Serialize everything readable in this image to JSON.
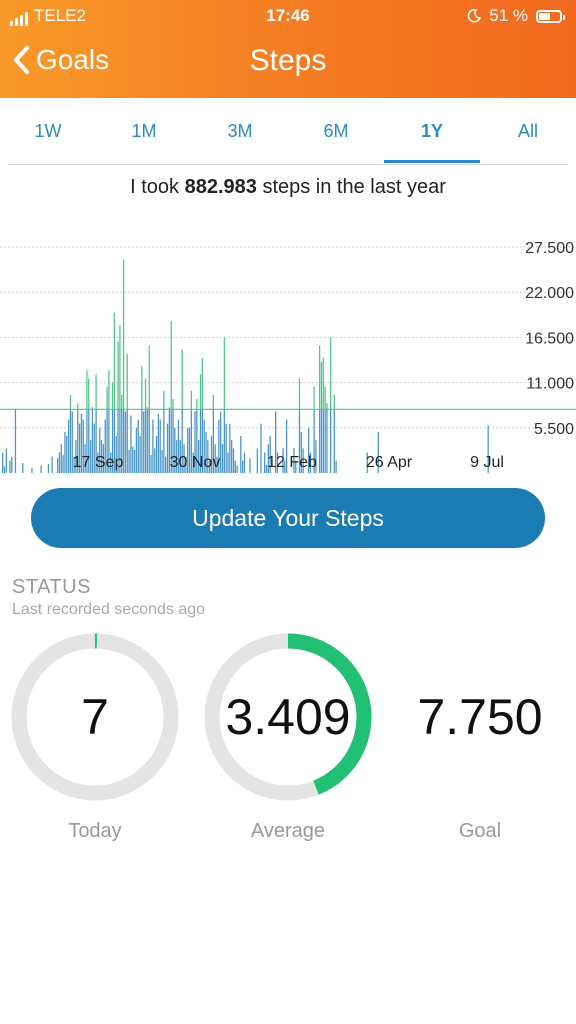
{
  "status_bar": {
    "carrier": "TELE2",
    "time": "17:46",
    "battery": "51 %"
  },
  "nav": {
    "back_label": "Goals",
    "title": "Steps"
  },
  "tabs": [
    {
      "label": "1W",
      "active": false
    },
    {
      "label": "1M",
      "active": false
    },
    {
      "label": "3M",
      "active": false
    },
    {
      "label": "6M",
      "active": false
    },
    {
      "label": "1Y",
      "active": true
    },
    {
      "label": "All",
      "active": false
    }
  ],
  "summary": {
    "prefix": "I took ",
    "steps": "882.983",
    "suffix": " steps in the last year"
  },
  "chart_data": {
    "type": "bar",
    "y_ticks": [
      "27.500",
      "22.000",
      "16.500",
      "11.000",
      "5.500"
    ],
    "y_tick_values": [
      27500,
      22000,
      16500,
      11000,
      5500
    ],
    "ylim": [
      0,
      27500
    ],
    "x_tick_labels": [
      "17 Sep",
      "30 Nov",
      "12 Feb",
      "26 Apr",
      "9 Jul"
    ],
    "goal_line": 7750,
    "colors": {
      "above_goal": "#52c58a",
      "below_goal": "#4a96c8",
      "goal_line": "#52c58a"
    },
    "values": [
      2500,
      800,
      3000,
      0,
      1500,
      2000,
      0,
      7800,
      0,
      0,
      0,
      1200,
      0,
      0,
      0,
      0,
      600,
      0,
      0,
      0,
      0,
      900,
      0,
      0,
      0,
      1100,
      0,
      2000,
      0,
      0,
      1800,
      2500,
      3500,
      2200,
      5000,
      4500,
      6500,
      9500,
      7500,
      2000,
      4000,
      8500,
      6000,
      7200,
      6500,
      3500,
      12500,
      11500,
      4000,
      8000,
      6000,
      12000,
      2500,
      5500,
      4000,
      3500,
      6500,
      10500,
      12500,
      2500,
      11000,
      19500,
      4500,
      16000,
      18000,
      9500,
      26000,
      7500,
      14500,
      2800,
      7000,
      3200,
      2800,
      5500,
      6500,
      4500,
      13000,
      7500,
      11500,
      8000,
      15500,
      2200,
      6500,
      3000,
      4500,
      7200,
      6500,
      2800,
      10000,
      2000,
      6000,
      8000,
      18500,
      9000,
      5500,
      4000,
      6500,
      4000,
      15000,
      3500,
      2000,
      5500,
      5500,
      10000,
      2500,
      7500,
      9000,
      4000,
      12000,
      14000,
      6500,
      5000,
      4000,
      1500,
      4500,
      9500,
      3500,
      2000,
      6500,
      7500,
      3500,
      16500,
      6000,
      2500,
      6000,
      4000,
      3000,
      1500,
      900,
      0,
      4500,
      1500,
      2500,
      0,
      0,
      1800,
      0,
      0,
      0,
      3000,
      0,
      6000,
      0,
      2500,
      1000,
      3500,
      4500,
      0,
      0,
      7500,
      2500,
      0,
      0,
      3000,
      1500,
      6500,
      0,
      0,
      0,
      3000,
      1500,
      0,
      11500,
      5000,
      3000,
      0,
      0,
      5500,
      2500,
      0,
      10500,
      4000,
      0,
      15500,
      13500,
      14000,
      10500,
      8500,
      0,
      16500,
      0,
      9500,
      1500,
      0,
      0,
      0,
      0,
      0,
      0,
      0,
      0,
      0,
      0,
      0,
      0,
      0,
      0,
      0,
      0,
      2500,
      0,
      0,
      0,
      0,
      0,
      5000,
      0,
      0,
      0,
      0,
      0,
      0,
      0,
      0,
      0,
      0,
      0,
      0,
      0,
      0,
      0,
      0,
      0,
      0,
      0,
      0,
      0,
      0,
      0,
      0,
      0,
      0,
      0,
      0,
      0,
      0,
      0,
      0,
      0,
      0,
      0,
      0,
      0,
      0,
      0,
      0,
      0,
      0,
      0,
      0,
      0,
      0,
      0,
      0,
      0,
      0,
      0,
      0,
      0,
      0,
      0,
      0,
      0,
      0,
      0,
      5800,
      0,
      0,
      0,
      0,
      0,
      0,
      0,
      0,
      0,
      0,
      0,
      0,
      0,
      0,
      0,
      0,
      0,
      0,
      0,
      0,
      0,
      0,
      0,
      0,
      0,
      0,
      0,
      0,
      0,
      0,
      0,
      0,
      0,
      0,
      0,
      0,
      0,
      0,
      0,
      0,
      0,
      0,
      0,
      0
    ]
  },
  "update_button": {
    "label": "Update Your Steps"
  },
  "status": {
    "title": "STATUS",
    "subtitle": "Last recorded seconds ago",
    "rings": [
      {
        "value": "7",
        "label": "Today",
        "progress": 0.001,
        "ring": true
      },
      {
        "value": "3.409",
        "label": "Average",
        "progress": 0.44,
        "ring": true
      },
      {
        "value": "7.750",
        "label": "Goal",
        "progress": 0,
        "ring": false
      }
    ],
    "colors": {
      "track": "#e4e4e4",
      "progress": "#22c074"
    }
  }
}
